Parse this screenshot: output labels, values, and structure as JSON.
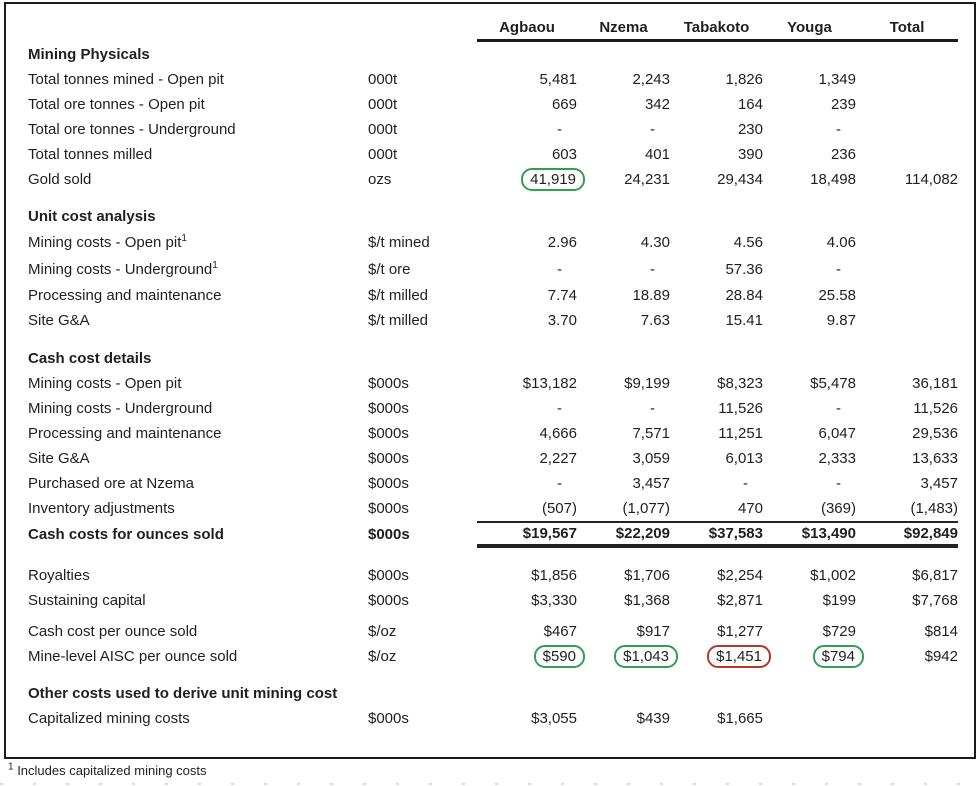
{
  "columns": [
    "Agbaou",
    "Nzema",
    "Tabakoto",
    "Youga",
    "Total"
  ],
  "colors": {
    "green": "#31a050",
    "red": "#b5362c"
  },
  "sections": [
    {
      "id": "mining-physicals",
      "title": "Mining Physicals",
      "rows": [
        {
          "label": "Total tonnes mined - Open pit",
          "unit": "000t",
          "values": [
            "5,481",
            "2,243",
            "1,826",
            "1,349",
            ""
          ]
        },
        {
          "label": "Total ore tonnes - Open pit",
          "unit": "000t",
          "values": [
            "669",
            "342",
            "164",
            "239",
            ""
          ]
        },
        {
          "label": "Total ore tonnes - Underground",
          "unit": "000t",
          "values": [
            "-",
            "-",
            "230",
            "-",
            ""
          ]
        },
        {
          "label": "Total tonnes milled",
          "unit": "000t",
          "values": [
            "603",
            "401",
            "390",
            "236",
            ""
          ]
        },
        {
          "label": "Gold sold",
          "unit": "ozs",
          "values": [
            "41,919",
            "24,231",
            "29,434",
            "18,498",
            "114,082"
          ],
          "marks": {
            "0": "green"
          }
        }
      ]
    },
    {
      "id": "unit-cost-analysis",
      "title": "Unit cost analysis",
      "rows": [
        {
          "label": "Mining costs - Open pit",
          "sup": "1",
          "unit": "$/t mined",
          "values": [
            "2.96",
            "4.30",
            "4.56",
            "4.06",
            ""
          ],
          "tall": true
        },
        {
          "label": "Mining costs - Underground",
          "sup": "1",
          "unit": "$/t ore",
          "values": [
            "-",
            "-",
            "57.36",
            "-",
            ""
          ],
          "tall": true
        },
        {
          "label": "Processing and maintenance",
          "unit": "$/t milled",
          "values": [
            "7.74",
            "18.89",
            "28.84",
            "25.58",
            ""
          ]
        },
        {
          "label": "Site G&A",
          "unit": "$/t milled",
          "values": [
            "3.70",
            "7.63",
            "15.41",
            "9.87",
            ""
          ]
        }
      ]
    },
    {
      "id": "cash-cost-details",
      "title": "Cash cost details",
      "rows": [
        {
          "label": "Mining costs - Open pit",
          "unit": "$000s",
          "values": [
            "$13,182",
            "$9,199",
            "$8,323",
            "$5,478",
            "36,181"
          ]
        },
        {
          "label": "Mining costs - Underground",
          "unit": "$000s",
          "values": [
            "-",
            "-",
            "11,526",
            "-",
            "11,526"
          ]
        },
        {
          "label": "Processing and maintenance",
          "unit": "$000s",
          "values": [
            "4,666",
            "7,571",
            "11,251",
            "6,047",
            "29,536"
          ]
        },
        {
          "label": "Site G&A",
          "unit": "$000s",
          "values": [
            "2,227",
            "3,059",
            "6,013",
            "2,333",
            "13,633"
          ]
        },
        {
          "label": "Purchased ore at Nzema",
          "unit": "$000s",
          "values": [
            "-",
            "3,457",
            "-",
            "-",
            "3,457"
          ]
        },
        {
          "label": "Inventory adjustments",
          "unit": "$000s",
          "values": [
            "(507)",
            "(1,077)",
            "470",
            "(369)",
            "(1,483)"
          ]
        },
        {
          "label": "Cash costs for ounces sold",
          "unit": "$000s",
          "values": [
            "$19,567",
            "$22,209",
            "$37,583",
            "$13,490",
            "$92,849"
          ],
          "bold": true,
          "rule_top": true,
          "rule_bottom": true
        }
      ]
    },
    {
      "id": "royalties-capital",
      "title": "",
      "rows": [
        {
          "label": "Royalties",
          "unit": "$000s",
          "values": [
            "$1,856",
            "$1,706",
            "$2,254",
            "$1,002",
            "$6,817"
          ]
        },
        {
          "label": "Sustaining capital",
          "unit": "$000s",
          "values": [
            "$3,330",
            "$1,368",
            "$2,871",
            "$199",
            "$7,768"
          ]
        },
        {
          "label": "Cash cost per ounce sold",
          "unit": "$/oz",
          "values": [
            "$467",
            "$917",
            "$1,277",
            "$729",
            "$814"
          ],
          "gap_before": true
        },
        {
          "label": "Mine-level AISC per ounce sold",
          "unit": "$/oz",
          "values": [
            "$590",
            "$1,043",
            "$1,451",
            "$794",
            "$942"
          ],
          "marks": {
            "0": "green",
            "1": "green",
            "2": "red",
            "3": "green"
          }
        }
      ]
    },
    {
      "id": "other-costs",
      "title": "Other costs used to derive unit mining cost",
      "rows": [
        {
          "label": "Capitalized mining costs",
          "unit": "$000s",
          "values": [
            "$3,055",
            "$439",
            "$1,665",
            "",
            ""
          ]
        }
      ]
    }
  ],
  "footnote": {
    "sup": "1",
    "text": "Includes capitalized mining costs"
  }
}
